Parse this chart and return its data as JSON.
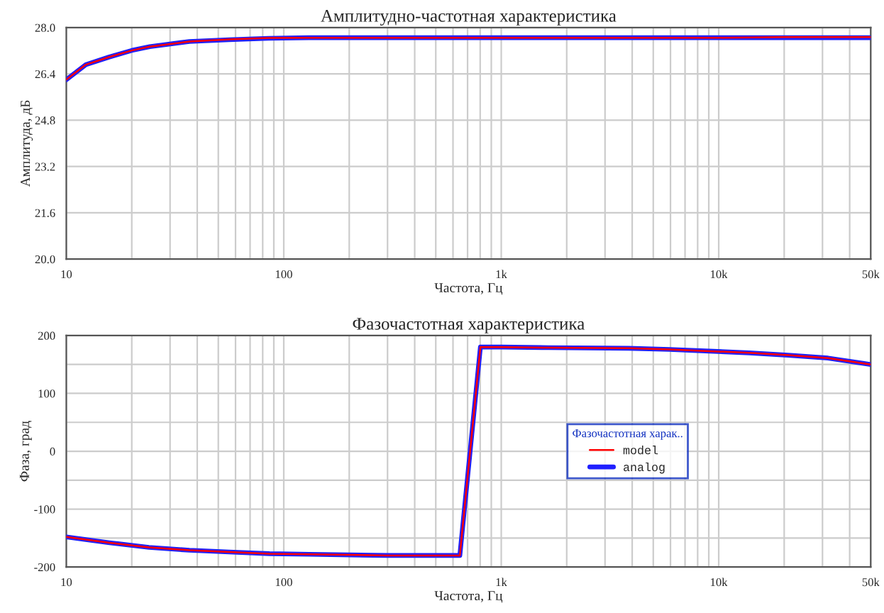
{
  "chart_data": [
    {
      "type": "line",
      "title": "Амплитудно-частотная характеристика",
      "xlabel": "Частота, Гц",
      "ylabel": "Амплитуда, дБ",
      "log": "x",
      "grid": true,
      "legend": false,
      "xlim": [
        10,
        50000
      ],
      "xticks": [
        {
          "value": 10,
          "label": "10"
        },
        {
          "value": 100,
          "label": "100"
        },
        {
          "value": 1000,
          "label": "1k"
        },
        {
          "value": 10000,
          "label": "10k"
        },
        {
          "value": 50000,
          "label": "50k"
        }
      ],
      "ylim": [
        20,
        28
      ],
      "yticks": [
        {
          "value": 20,
          "label": "20.0"
        },
        {
          "value": 21.6,
          "label": "21.6"
        },
        {
          "value": 23.2,
          "label": "23.2"
        },
        {
          "value": 24.8,
          "label": "24.8"
        },
        {
          "value": 26.4,
          "label": "26.4"
        },
        {
          "value": 28,
          "label": "28.0"
        }
      ],
      "x": [
        10,
        12.3,
        15.7,
        20,
        24.2,
        36.8,
        56,
        85,
        130,
        200,
        1000,
        10000,
        20000,
        50000
      ],
      "series": [
        {
          "color": "#ff0000",
          "values": [
            26.2,
            26.72,
            26.98,
            27.21,
            27.34,
            27.52,
            27.59,
            27.64,
            27.65,
            27.65,
            27.65,
            27.65,
            27.67,
            27.67
          ]
        },
        {
          "color": "#2020ff",
          "values": [
            26.2,
            26.72,
            26.98,
            27.21,
            27.34,
            27.52,
            27.58,
            27.63,
            27.65,
            27.65,
            27.65,
            27.65,
            27.65,
            27.65
          ]
        }
      ]
    },
    {
      "type": "line",
      "title": "Фазочастотная характеристика",
      "xlabel": "Частота, Гц",
      "ylabel": "Фаза, град",
      "log": "x",
      "grid": true,
      "legend": "center right",
      "legend_title": "Фазочастотная харак..",
      "xlim": [
        10,
        50000
      ],
      "xticks": [
        {
          "value": 10,
          "label": "10"
        },
        {
          "value": 100,
          "label": "100"
        },
        {
          "value": 1000,
          "label": "1k"
        },
        {
          "value": 10000,
          "label": "10k"
        },
        {
          "value": 50000,
          "label": "50k"
        }
      ],
      "ylim": [
        -200,
        200
      ],
      "yticks": [
        -200,
        {
          "value": -150,
          "label": null
        },
        -100,
        {
          "value": -50,
          "label": null
        },
        0,
        {
          "value": 50,
          "label": null
        },
        100,
        {
          "value": 150,
          "label": null
        },
        200
      ],
      "x": [
        10,
        15.8,
        24,
        36.8,
        56,
        86,
        131,
        300,
        645,
        802,
        1000,
        1652,
        3846,
        5940,
        9040,
        13800,
        20800,
        31800,
        50000
      ],
      "series": [
        {
          "name": "model",
          "color": "#ff0000",
          "values": [
            -148,
            -158,
            -166,
            -171,
            -174,
            -177,
            -178,
            -180,
            -180,
            180,
            180,
            179,
            178,
            176,
            173,
            170,
            166,
            161,
            150
          ]
        },
        {
          "name": "analog",
          "color": "#2020ff",
          "values": [
            -148,
            -158,
            -166,
            -171,
            -174,
            -177,
            -178,
            -180,
            -180,
            180,
            180,
            179,
            178,
            176,
            173,
            170,
            166,
            161,
            150
          ]
        }
      ]
    }
  ]
}
